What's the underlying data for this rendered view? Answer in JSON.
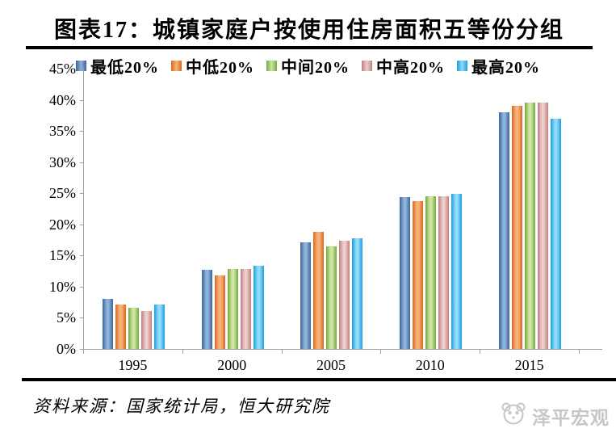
{
  "header": {
    "title": "图表17：城镇家庭户按使用住房面积五等份分组"
  },
  "chart_data": {
    "type": "bar",
    "title": "城镇家庭户按使用住房面积五等份分组",
    "categories": [
      "1995",
      "2000",
      "2005",
      "2010",
      "2015"
    ],
    "series": [
      {
        "name": "最低20%",
        "color": "#4f81bd",
        "color_dark": "#3c6496",
        "color_light": "#8fb3da",
        "values": [
          8.1,
          12.7,
          17.1,
          24.4,
          38.0
        ]
      },
      {
        "name": "中低20%",
        "color": "#ed7d31",
        "color_dark": "#d9681a",
        "color_light": "#f9b47e",
        "values": [
          7.1,
          11.8,
          18.8,
          23.7,
          39.0
        ]
      },
      {
        "name": "中间20%",
        "color": "#92c353",
        "color_dark": "#79a73b",
        "color_light": "#cde7a4",
        "values": [
          6.6,
          12.8,
          16.5,
          24.5,
          39.5
        ]
      },
      {
        "name": "中高20%",
        "color": "#d99694",
        "color_dark": "#c17e7c",
        "color_light": "#eccfce",
        "values": [
          6.1,
          12.8,
          17.4,
          24.5,
          39.5
        ]
      },
      {
        "name": "最高20%",
        "color": "#3db7f0",
        "color_dark": "#1a9fdd",
        "color_light": "#93dbfb",
        "values": [
          7.2,
          13.4,
          17.8,
          24.9,
          37.0
        ]
      }
    ],
    "ylim": [
      0,
      45
    ],
    "ytick_step": 5,
    "yticks": [
      "0%",
      "5%",
      "10%",
      "15%",
      "20%",
      "25%",
      "30%",
      "35%",
      "40%",
      "45%"
    ],
    "xlabel": "",
    "ylabel": "",
    "legend_position": "top",
    "grid": false,
    "axis_color": "#a0a0a0"
  },
  "footer": {
    "source_note": "资料来源：国家统计局，恒大研究院",
    "watermark_text": "泽平宏观"
  }
}
